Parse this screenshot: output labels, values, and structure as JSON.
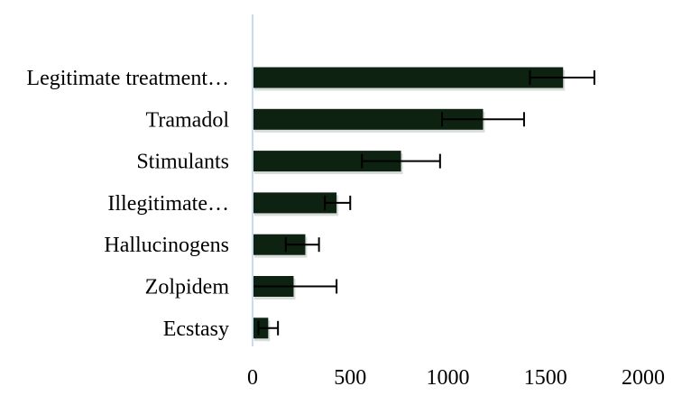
{
  "chart_data": {
    "type": "bar",
    "orientation": "horizontal",
    "categories": [
      "Legitimate treatment…",
      "Tramadol",
      "Stimulants",
      "Illegitimate…",
      "Hallucinogens",
      "Zolpidem",
      "Ecstasy"
    ],
    "values": [
      1590,
      1180,
      760,
      430,
      270,
      210,
      80
    ],
    "error_low": [
      1420,
      970,
      560,
      370,
      170,
      0,
      30
    ],
    "error_high": [
      1750,
      1390,
      960,
      500,
      340,
      430,
      130
    ],
    "xlim": [
      0,
      2000
    ],
    "xticks": [
      "0",
      "500",
      "1000",
      "1500",
      "2000"
    ],
    "grid": false,
    "legend": "none",
    "colors": {
      "bar": "#0d2210",
      "bar_shadow": "#bfc6bf",
      "axis": "#c9dcec",
      "error": "#000000"
    }
  }
}
